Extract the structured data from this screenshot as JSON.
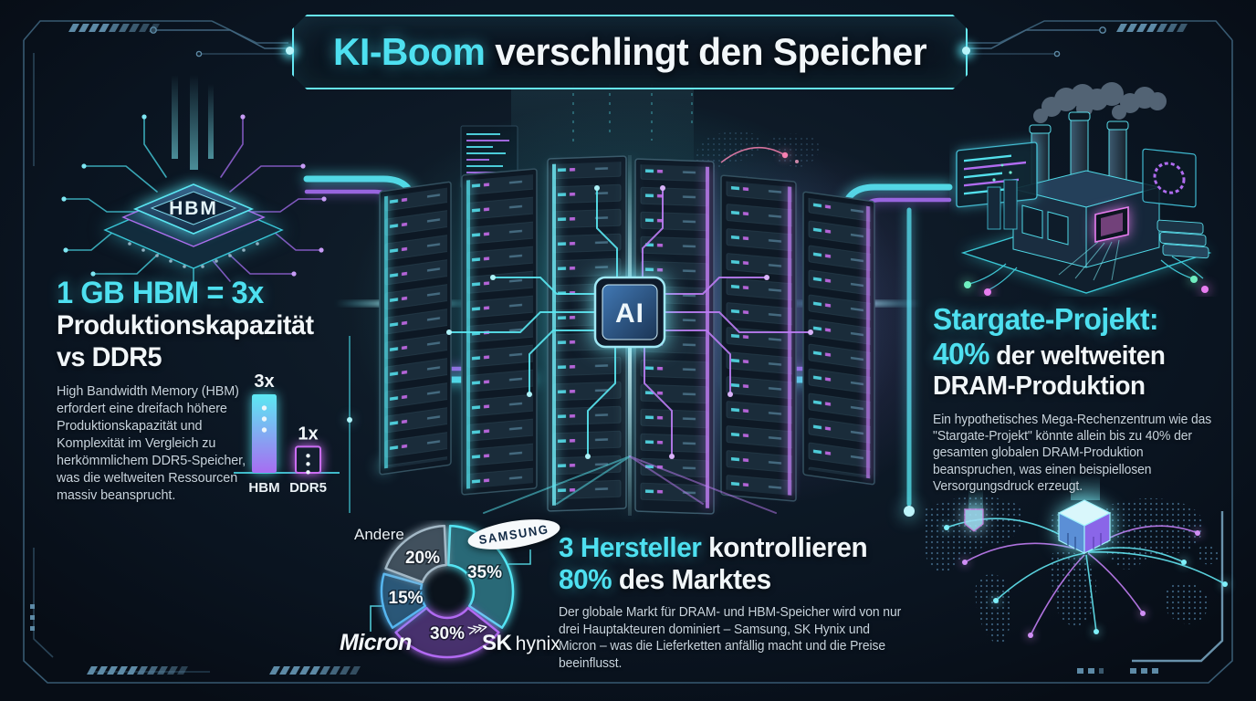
{
  "title": {
    "accent": "KI-Boom",
    "rest": " verschlingt den Speicher"
  },
  "left_stat": {
    "headline_line1": "1 GB HBM = 3x",
    "headline_line2": "Produktionskapazität",
    "headline_line3": "vs DDR5",
    "body": "High Bandwidth Memory (HBM) erfordert eine dreifach höhere Produktionskapazität und Komplexität im Vergleich zu herkömmlichem DDR5-Speicher, was die weltweiten Ressourcen massiv beansprucht.",
    "chip_label": "HBM"
  },
  "center": {
    "chip_label": "AI"
  },
  "right_stat": {
    "headline_line1": "Stargate-Projekt:",
    "headline_accent": "40%",
    "headline_line2_rest": " der weltweiten",
    "headline_line3": "DRAM-Produktion",
    "body": "Ein hypothetisches Mega-Rechenzentrum wie das \"Stargate-Projekt\" könnte allein bis zu 40% der gesamten globalen DRAM-Produktion beanspruchen, was einen beispiellosen Versorgungsdruck erzeugt."
  },
  "market": {
    "headline_accent1": "3 Hersteller",
    "headline_rest1": " kontrollieren",
    "headline_accent2": "80%",
    "headline_rest2": " des Marktes",
    "body": "Der globale Markt für DRAM- und HBM-Speicher wird von nur drei Hauptakteuren dominiert – Samsung, SK Hynix und Micron – was die Lieferketten anfällig macht und die Preise beeinflusst."
  },
  "donut_labels": {
    "andere": "Andere",
    "samsung": "SAMSUNG",
    "micron": "Micron",
    "sk": "SK",
    "hynix": "hynix"
  },
  "chart_data": [
    {
      "type": "bar",
      "categories": [
        "HBM",
        "DDR5"
      ],
      "values": [
        3,
        1
      ],
      "value_labels": [
        "3x",
        "1x"
      ],
      "ylim": [
        0,
        3
      ],
      "bar_styles": [
        {
          "fill_top": "#5ce9f2",
          "fill_bottom": "#a76df2"
        },
        {
          "fill": "#131f2e",
          "border": "#cb6df2"
        }
      ]
    },
    {
      "type": "pie",
      "donut": true,
      "direction": "clockwise",
      "start_at": "top",
      "segments": [
        {
          "label": "Samsung",
          "value": 35,
          "fill": "#265f6e",
          "edge": "#52e6f4"
        },
        {
          "label": "SK hynix",
          "value": 30,
          "fill": "#3f2d63",
          "edge": "#b26af2"
        },
        {
          "label": "Micron",
          "value": 15,
          "fill": "#27506f",
          "edge": "#56b6f0"
        },
        {
          "label": "Andere",
          "value": 20,
          "fill": "#3a4956",
          "edge": "#a3b8c6"
        }
      ]
    }
  ],
  "colors": {
    "accent_cyan": "#4ee0f0",
    "accent_purple": "#a76df2",
    "headline_white": "#f1f6f9",
    "body_text": "#c7d3dd",
    "background": "#0b1520",
    "frame_line": "#3a5e76"
  }
}
